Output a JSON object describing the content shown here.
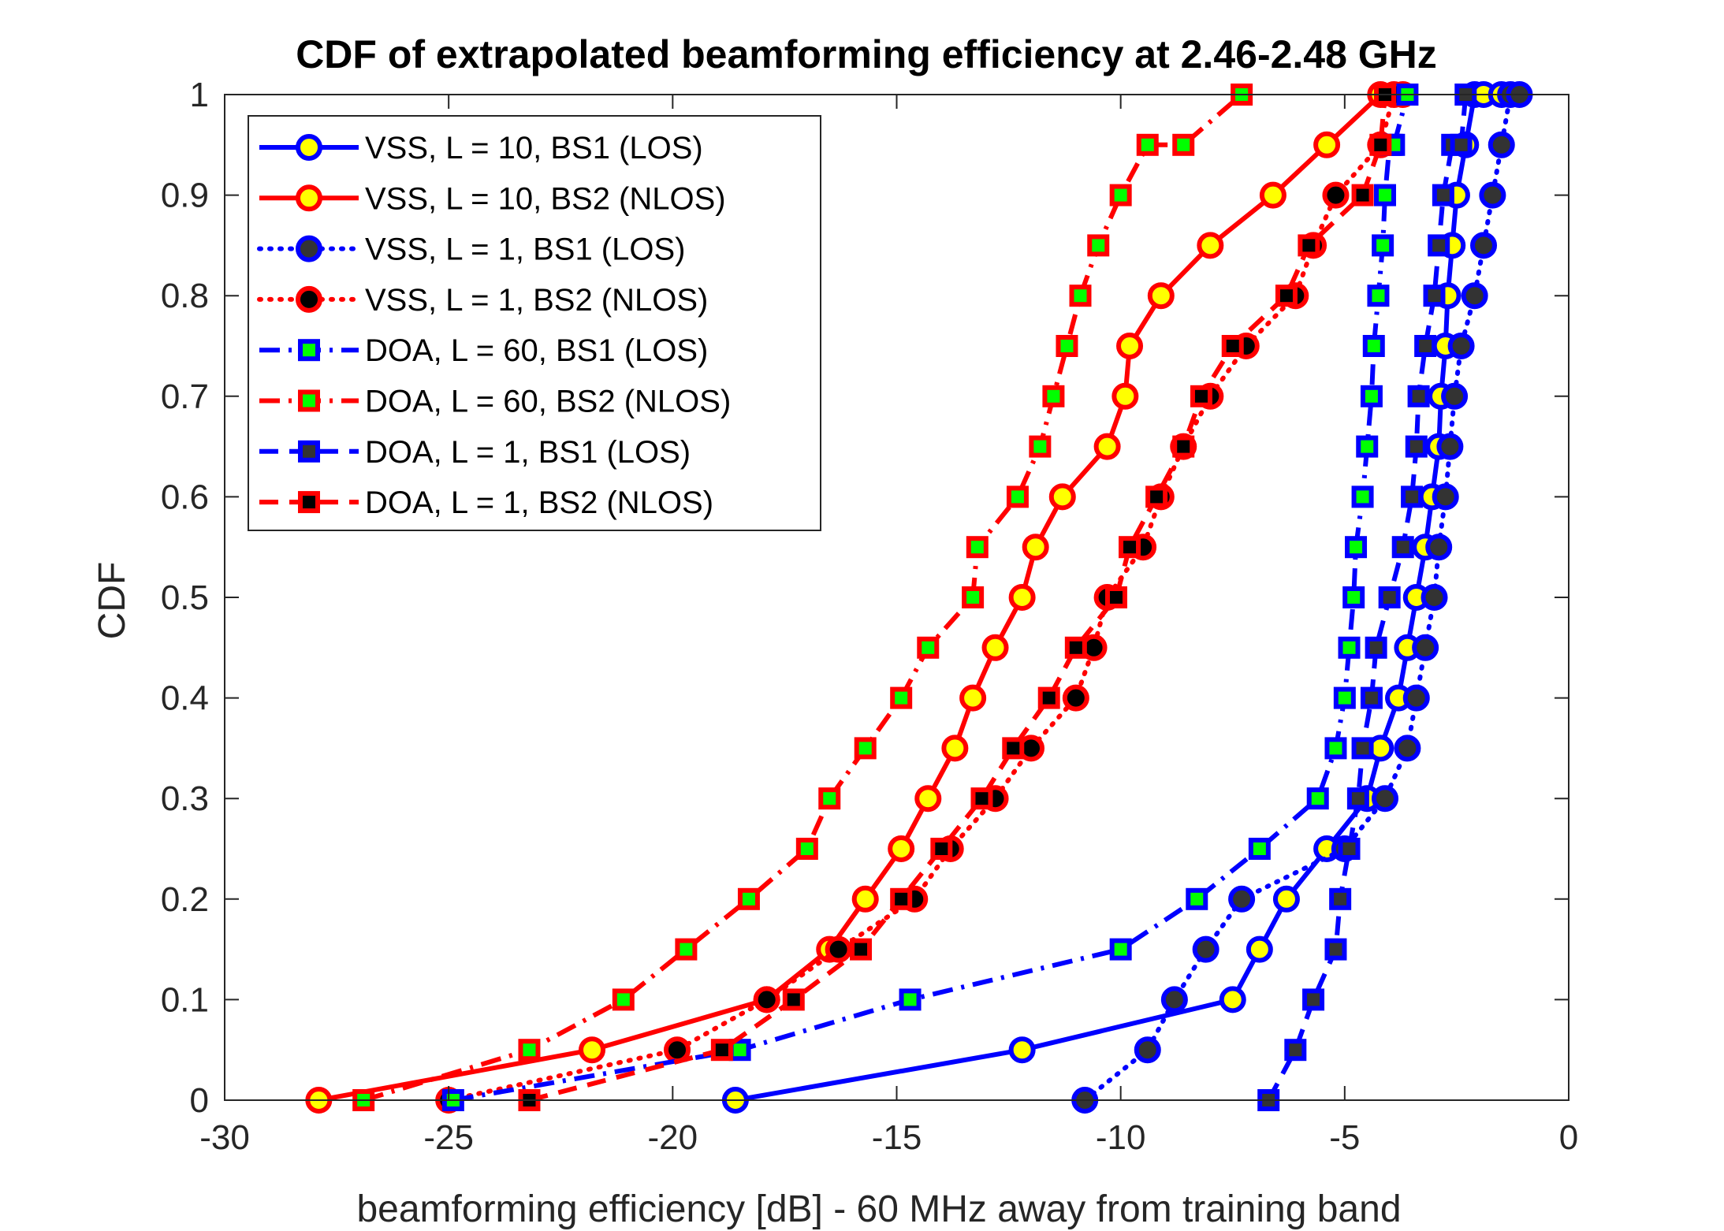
{
  "chart_data": {
    "type": "line",
    "title": "CDF of extrapolated beamforming efficiency at 2.46-2.48 GHz",
    "xlabel": "beamforming efficiency [dB] - 60 MHz away from training band",
    "ylabel": "CDF",
    "xlim": [
      -30,
      0
    ],
    "ylim": [
      0,
      1
    ],
    "xticks": [
      -30,
      -25,
      -20,
      -15,
      -10,
      -5,
      0
    ],
    "xtick_labels": [
      "-30",
      "-25",
      "-20",
      "-15",
      "-10",
      "-5",
      "0"
    ],
    "yticks": [
      0,
      0.1,
      0.2,
      0.3,
      0.4,
      0.5,
      0.6,
      0.7,
      0.8,
      0.9,
      1
    ],
    "ytick_labels": [
      "0",
      "0.1",
      "0.2",
      "0.3",
      "0.4",
      "0.5",
      "0.6",
      "0.7",
      "0.8",
      "0.9",
      "1"
    ],
    "grid": false,
    "legend_position": "top-left",
    "series": [
      {
        "name": "VSS, L = 10, BS1 (LOS)",
        "color": "#0000ff",
        "line_style": "solid",
        "marker": "circle",
        "marker_face": "#ffff00",
        "x": [
          -18.6,
          -12.2,
          -7.5,
          -6.9,
          -6.3,
          -5.4,
          -4.5,
          -4.2,
          -3.8,
          -3.6,
          -3.4,
          -3.2,
          -3.05,
          -2.9,
          -2.85,
          -2.75,
          -2.7,
          -2.6,
          -2.5,
          -2.3,
          -2.1,
          -1.9,
          -1.5
        ],
        "y": [
          0.0,
          0.05,
          0.1,
          0.15,
          0.2,
          0.25,
          0.3,
          0.35,
          0.4,
          0.45,
          0.5,
          0.55,
          0.6,
          0.65,
          0.7,
          0.75,
          0.8,
          0.85,
          0.9,
          0.95,
          1.0,
          1.0,
          1.0
        ]
      },
      {
        "name": "VSS, L = 10, BS2 (NLOS)",
        "color": "#ff0000",
        "line_style": "solid",
        "marker": "circle",
        "marker_face": "#ffff00",
        "x": [
          -27.9,
          -21.8,
          -17.9,
          -16.5,
          -15.7,
          -14.9,
          -14.3,
          -13.7,
          -13.3,
          -12.8,
          -12.2,
          -11.9,
          -11.3,
          -10.3,
          -9.9,
          -9.8,
          -9.1,
          -8.0,
          -6.6,
          -5.4,
          -4.2,
          -3.7
        ],
        "y": [
          0.0,
          0.05,
          0.1,
          0.15,
          0.2,
          0.25,
          0.3,
          0.35,
          0.4,
          0.45,
          0.5,
          0.55,
          0.6,
          0.65,
          0.7,
          0.75,
          0.8,
          0.85,
          0.9,
          0.95,
          1.0,
          1.0
        ]
      },
      {
        "name": "VSS, L = 1, BS1 (LOS)",
        "color": "#0000ff",
        "line_style": "dotted",
        "marker": "circle",
        "marker_face": "#333333",
        "x": [
          -10.8,
          -9.4,
          -8.8,
          -8.1,
          -7.3,
          -5.0,
          -4.1,
          -3.6,
          -3.4,
          -3.2,
          -3.0,
          -2.9,
          -2.75,
          -2.65,
          -2.55,
          -2.4,
          -2.1,
          -1.9,
          -1.7,
          -1.5,
          -1.3,
          -1.1
        ],
        "y": [
          0.0,
          0.05,
          0.1,
          0.15,
          0.2,
          0.25,
          0.3,
          0.35,
          0.4,
          0.45,
          0.5,
          0.55,
          0.6,
          0.65,
          0.7,
          0.75,
          0.8,
          0.85,
          0.9,
          0.95,
          1.0,
          1.0
        ]
      },
      {
        "name": "VSS, L = 1, BS2 (NLOS)",
        "color": "#ff0000",
        "line_style": "dotted",
        "marker": "circle",
        "marker_face": "#000000",
        "x": [
          -25.0,
          -19.9,
          -17.9,
          -16.3,
          -14.6,
          -13.8,
          -12.8,
          -12.0,
          -11.0,
          -10.6,
          -10.3,
          -9.5,
          -9.1,
          -8.6,
          -8.0,
          -7.2,
          -6.1,
          -5.7,
          -5.2,
          -4.2,
          -3.9
        ],
        "y": [
          0.0,
          0.05,
          0.1,
          0.15,
          0.2,
          0.25,
          0.3,
          0.35,
          0.4,
          0.45,
          0.5,
          0.55,
          0.6,
          0.65,
          0.7,
          0.75,
          0.8,
          0.85,
          0.9,
          0.95,
          1.0
        ]
      },
      {
        "name": "DOA, L = 60, BS1 (LOS)",
        "color": "#0000ff",
        "line_style": "dashdot",
        "marker": "square",
        "marker_face": "#00ff00",
        "x": [
          -24.9,
          -18.5,
          -14.7,
          -10.0,
          -8.3,
          -6.9,
          -5.6,
          -5.2,
          -5.0,
          -4.9,
          -4.8,
          -4.75,
          -4.6,
          -4.5,
          -4.4,
          -4.35,
          -4.25,
          -4.15,
          -4.1,
          -4.0,
          -3.95,
          -3.9,
          -3.6
        ],
        "y": [
          0.0,
          0.05,
          0.1,
          0.15,
          0.2,
          0.25,
          0.3,
          0.35,
          0.4,
          0.45,
          0.5,
          0.55,
          0.6,
          0.65,
          0.7,
          0.75,
          0.8,
          0.85,
          0.9,
          0.95,
          0.95,
          0.95,
          1.0
        ]
      },
      {
        "name": "DOA, L = 60, BS2 (NLOS)",
        "color": "#ff0000",
        "line_style": "dashdot",
        "marker": "square",
        "marker_face": "#00ff00",
        "x": [
          -26.9,
          -23.2,
          -21.1,
          -19.7,
          -18.3,
          -17.0,
          -16.5,
          -15.7,
          -14.9,
          -14.3,
          -13.3,
          -13.2,
          -12.3,
          -11.8,
          -11.5,
          -11.2,
          -10.9,
          -10.5,
          -10.0,
          -9.4,
          -8.6,
          -7.3
        ],
        "y": [
          0.0,
          0.05,
          0.1,
          0.15,
          0.2,
          0.25,
          0.3,
          0.35,
          0.4,
          0.45,
          0.5,
          0.55,
          0.6,
          0.65,
          0.7,
          0.75,
          0.8,
          0.85,
          0.9,
          0.95,
          0.95,
          1.0
        ]
      },
      {
        "name": "DOA, L = 1, BS1 (LOS)",
        "color": "#0000ff",
        "line_style": "dashed",
        "marker": "square",
        "marker_face": "#333333",
        "x": [
          -6.7,
          -6.1,
          -5.7,
          -5.2,
          -5.1,
          -4.9,
          -4.7,
          -4.6,
          -4.4,
          -4.3,
          -4.0,
          -3.7,
          -3.5,
          -3.4,
          -3.35,
          -3.2,
          -3.0,
          -2.9,
          -2.8,
          -2.6,
          -2.4,
          -2.3
        ],
        "y": [
          0.0,
          0.05,
          0.1,
          0.15,
          0.2,
          0.25,
          0.3,
          0.35,
          0.4,
          0.45,
          0.5,
          0.55,
          0.6,
          0.65,
          0.7,
          0.75,
          0.8,
          0.85,
          0.9,
          0.95,
          0.95,
          1.0
        ]
      },
      {
        "name": "DOA, L = 1, BS2 (NLOS)",
        "color": "#ff0000",
        "line_style": "dashed",
        "marker": "square",
        "marker_face": "#000000",
        "x": [
          -23.2,
          -18.9,
          -17.3,
          -15.8,
          -14.9,
          -14.0,
          -13.1,
          -12.4,
          -11.6,
          -11.0,
          -10.1,
          -9.8,
          -9.2,
          -8.6,
          -8.2,
          -7.5,
          -6.3,
          -5.8,
          -4.6,
          -4.2,
          -4.1
        ],
        "y": [
          0.0,
          0.05,
          0.1,
          0.15,
          0.2,
          0.25,
          0.3,
          0.35,
          0.4,
          0.45,
          0.5,
          0.55,
          0.6,
          0.65,
          0.7,
          0.75,
          0.8,
          0.85,
          0.9,
          0.95,
          1.0
        ]
      }
    ]
  }
}
